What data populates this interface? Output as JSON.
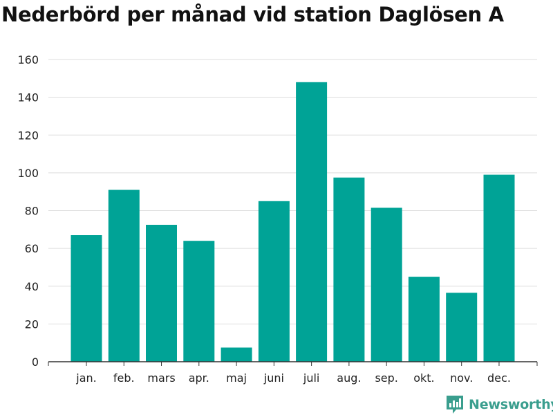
{
  "chart_data": {
    "type": "bar",
    "title": "Nederbörd per månad vid station Daglösen A",
    "xlabel": "",
    "ylabel": "",
    "categories": [
      "jan.",
      "feb.",
      "mars",
      "apr.",
      "maj",
      "juni",
      "juli",
      "aug.",
      "sep.",
      "okt.",
      "nov.",
      "dec."
    ],
    "values": [
      67,
      91,
      72.5,
      64,
      7.5,
      85,
      148,
      97.5,
      81.5,
      45,
      36.5,
      99
    ],
    "ylim": [
      0,
      160
    ],
    "yticks": [
      0,
      20,
      40,
      60,
      80,
      100,
      120,
      140,
      160
    ],
    "grid": true,
    "bar_color": "#00a396"
  },
  "branding": {
    "logo_text": "Newsworthy",
    "logo_color": "#3a9e8e"
  }
}
